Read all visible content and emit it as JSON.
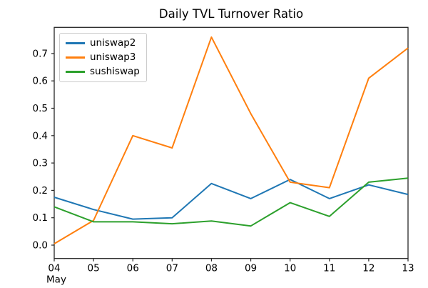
{
  "figure": {
    "title": "Daily TVL Turnover Ratio",
    "background": "#ffffff",
    "spine_color": "#262626",
    "text_color": "#000000"
  },
  "chart_data": {
    "type": "line",
    "title": "Daily TVL Turnover Ratio",
    "xlabel": "",
    "ylabel": "",
    "x_axis_month_label": "May",
    "categories": [
      "04",
      "05",
      "06",
      "07",
      "08",
      "09",
      "10",
      "11",
      "12",
      "13"
    ],
    "series": [
      {
        "name": "uniswap2",
        "color": "#1f77b4",
        "values": [
          0.175,
          0.13,
          0.095,
          0.1,
          0.225,
          0.17,
          0.24,
          0.17,
          0.22,
          0.185
        ]
      },
      {
        "name": "uniswap3",
        "color": "#ff7f0e",
        "values": [
          0.005,
          0.09,
          0.4,
          0.355,
          0.76,
          0.48,
          0.23,
          0.21,
          0.61,
          0.72
        ]
      },
      {
        "name": "sushiswap",
        "color": "#2ca02c",
        "values": [
          0.14,
          0.085,
          0.085,
          0.078,
          0.088,
          0.07,
          0.155,
          0.105,
          0.23,
          0.245
        ]
      }
    ],
    "yticks": [
      0.0,
      0.1,
      0.2,
      0.3,
      0.4,
      0.5,
      0.6,
      0.7
    ],
    "ylim": [
      -0.0488,
      0.7955
    ],
    "grid": false,
    "legend_position": "upper-left"
  }
}
